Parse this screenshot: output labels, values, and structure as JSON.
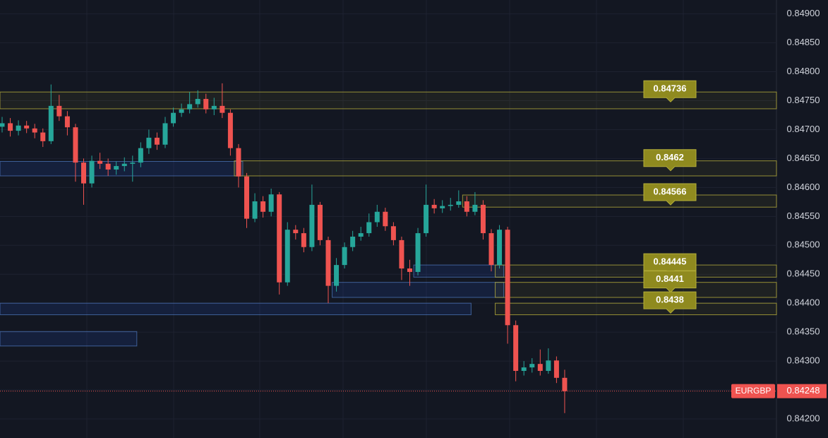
{
  "chart_data": {
    "type": "candlestick",
    "ylim": [
      0.84167,
      0.84924
    ],
    "yticks": [
      {
        "value": 0.849,
        "label": "0.84900"
      },
      {
        "value": 0.8485,
        "label": "0.84850"
      },
      {
        "value": 0.848,
        "label": "0.84800"
      },
      {
        "value": 0.8475,
        "label": "0.84750"
      },
      {
        "value": 0.847,
        "label": "0.84700"
      },
      {
        "value": 0.8465,
        "label": "0.84650"
      },
      {
        "value": 0.846,
        "label": "0.84600"
      },
      {
        "value": 0.8455,
        "label": "0.84550"
      },
      {
        "value": 0.845,
        "label": "0.84500"
      },
      {
        "value": 0.8445,
        "label": "0.84450"
      },
      {
        "value": 0.844,
        "label": "0.84400"
      },
      {
        "value": 0.8435,
        "label": "0.84350"
      },
      {
        "value": 0.843,
        "label": "0.84300"
      },
      {
        "value": 0.8425,
        "label": "0.84250"
      },
      {
        "value": 0.842,
        "label": "0.84200"
      }
    ],
    "up_color": "#26a69a",
    "down_color": "#ef5350",
    "series": [
      {
        "name": "EURGBP",
        "open": [
          0.84705,
          0.84711,
          0.84698,
          0.84707,
          0.84702,
          0.84695,
          0.8468,
          0.84741,
          0.84723,
          0.84704,
          0.84643,
          0.84607,
          0.84646,
          0.84641,
          0.84631,
          0.84637,
          0.84641,
          0.84643,
          0.84668,
          0.84686,
          0.84674,
          0.84711,
          0.84729,
          0.84735,
          0.84744,
          0.84753,
          0.84735,
          0.84741,
          0.84729,
          0.84668,
          0.84619,
          0.84546,
          0.84576,
          0.84558,
          0.84588,
          0.84436,
          0.84527,
          0.84521,
          0.84497,
          0.8457,
          0.84509,
          0.8443,
          0.84466,
          0.84497,
          0.84515,
          0.84521,
          0.8454,
          0.84558,
          0.84533,
          0.84509,
          0.8446,
          0.84454,
          0.84521,
          0.8457,
          0.84564,
          0.84568,
          0.8457,
          0.84576,
          0.84558,
          0.8457,
          0.84521,
          0.84466,
          0.84527,
          0.84362,
          0.84283,
          0.84289,
          0.84295,
          0.84283,
          0.84301,
          0.84271
        ],
        "high": [
          0.84722,
          0.8472,
          0.84716,
          0.84715,
          0.8471,
          0.84702,
          0.84778,
          0.8476,
          0.84732,
          0.8471,
          0.8465,
          0.84655,
          0.8466,
          0.8465,
          0.84645,
          0.84652,
          0.84655,
          0.84678,
          0.847,
          0.84695,
          0.84722,
          0.84738,
          0.84745,
          0.84765,
          0.84768,
          0.84762,
          0.84755,
          0.8478,
          0.84735,
          0.84675,
          0.84625,
          0.8459,
          0.84585,
          0.84598,
          0.84592,
          0.8454,
          0.84535,
          0.8453,
          0.84605,
          0.84575,
          0.84515,
          0.84478,
          0.84505,
          0.84525,
          0.84532,
          0.84555,
          0.8457,
          0.84565,
          0.8454,
          0.84515,
          0.84475,
          0.8453,
          0.84605,
          0.8458,
          0.84578,
          0.84582,
          0.84595,
          0.84585,
          0.84592,
          0.84578,
          0.84528,
          0.84535,
          0.84532,
          0.8437,
          0.843,
          0.84305,
          0.8432,
          0.84322,
          0.84308,
          0.84285
        ],
        "low": [
          0.84695,
          0.84688,
          0.8469,
          0.84694,
          0.84685,
          0.8467,
          0.84675,
          0.84715,
          0.8469,
          0.8461,
          0.8457,
          0.846,
          0.84632,
          0.8462,
          0.84622,
          0.84628,
          0.8461,
          0.84635,
          0.84658,
          0.84665,
          0.84668,
          0.84705,
          0.84722,
          0.84728,
          0.84738,
          0.84728,
          0.84725,
          0.8472,
          0.84655,
          0.846,
          0.8453,
          0.8454,
          0.84548,
          0.8455,
          0.84415,
          0.8443,
          0.8451,
          0.84488,
          0.8449,
          0.845,
          0.844,
          0.8442,
          0.8446,
          0.8449,
          0.84508,
          0.84515,
          0.84532,
          0.84525,
          0.845,
          0.8444,
          0.8443,
          0.84448,
          0.84515,
          0.84555,
          0.84556,
          0.8456,
          0.84565,
          0.8455,
          0.84552,
          0.8451,
          0.84455,
          0.8446,
          0.8433,
          0.84265,
          0.84275,
          0.8428,
          0.84275,
          0.84278,
          0.84262,
          0.8421
        ],
        "close": [
          0.84711,
          0.84698,
          0.84707,
          0.84702,
          0.84695,
          0.8468,
          0.84741,
          0.84723,
          0.84704,
          0.84643,
          0.84607,
          0.84646,
          0.84641,
          0.84631,
          0.84637,
          0.84641,
          0.84643,
          0.84668,
          0.84686,
          0.84674,
          0.84711,
          0.84729,
          0.84735,
          0.84744,
          0.84753,
          0.84735,
          0.84741,
          0.84729,
          0.84668,
          0.84619,
          0.84546,
          0.84576,
          0.84558,
          0.84588,
          0.84436,
          0.84527,
          0.84521,
          0.84497,
          0.8457,
          0.84509,
          0.8443,
          0.84466,
          0.84497,
          0.84515,
          0.84521,
          0.8454,
          0.84558,
          0.84533,
          0.84509,
          0.8446,
          0.84454,
          0.84521,
          0.8457,
          0.84564,
          0.84568,
          0.8457,
          0.84576,
          0.84558,
          0.8457,
          0.84521,
          0.84466,
          0.84527,
          0.84362,
          0.84283,
          0.84289,
          0.84295,
          0.84283,
          0.84301,
          0.84271,
          0.84248
        ]
      }
    ],
    "last_price": 0.84248,
    "levels": [
      {
        "level": 0.84736,
        "top": 0.84765,
        "bottom": 0.84736,
        "from": 0
      },
      {
        "level": 0.8462,
        "top": 0.84646,
        "bottom": 0.8462,
        "from": 29
      },
      {
        "level": 0.84566,
        "top": 0.84587,
        "bottom": 0.84566,
        "from": 57
      },
      {
        "level": 0.84445,
        "top": 0.84466,
        "bottom": 0.84445,
        "from": 61
      },
      {
        "level": 0.8441,
        "top": 0.84436,
        "bottom": 0.8441,
        "from": 61
      },
      {
        "level": 0.8438,
        "top": 0.844,
        "bottom": 0.8438,
        "from": 61
      }
    ],
    "zones": [
      {
        "top": 0.84645,
        "bottom": 0.8462,
        "from": 0,
        "to": 29
      },
      {
        "top": 0.84466,
        "bottom": 0.84445,
        "from": 51,
        "to": 61
      },
      {
        "top": 0.84436,
        "bottom": 0.8441,
        "from": 41,
        "to": 61
      },
      {
        "top": 0.844,
        "bottom": 0.8438,
        "from": 0,
        "to": 57
      },
      {
        "top": 0.84351,
        "bottom": 0.84326,
        "from": 0,
        "to": 16
      }
    ]
  }
}
